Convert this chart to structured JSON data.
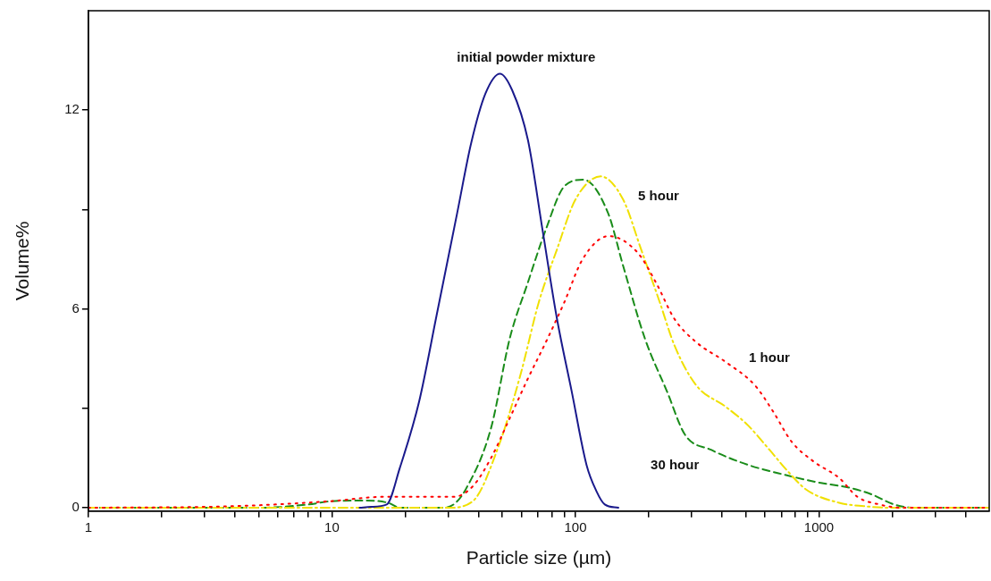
{
  "chart_data": {
    "type": "line",
    "xlabel": "Particle size (µm)",
    "ylabel": "Volume%",
    "log": "x",
    "xlim": [
      1,
      5000
    ],
    "ylim": [
      -0.1,
      15
    ],
    "xticks": [
      1,
      {
        "value": 2,
        "label": null
      },
      {
        "value": 3,
        "label": null
      },
      {
        "value": 4,
        "label": null
      },
      {
        "value": 5,
        "label": null
      },
      {
        "value": 6,
        "label": null
      },
      {
        "value": 7,
        "label": null
      },
      {
        "value": 8,
        "label": null
      },
      {
        "value": 9,
        "label": null
      },
      10,
      {
        "value": 20,
        "label": null
      },
      {
        "value": 30,
        "label": null
      },
      {
        "value": 40,
        "label": null
      },
      {
        "value": 50,
        "label": null
      },
      {
        "value": 60,
        "label": null
      },
      {
        "value": 70,
        "label": null
      },
      {
        "value": 80,
        "label": null
      },
      {
        "value": 90,
        "label": null
      },
      100,
      {
        "value": 200,
        "label": null
      },
      {
        "value": 300,
        "label": null
      },
      {
        "value": 400,
        "label": null
      },
      {
        "value": 500,
        "label": null
      },
      {
        "value": 600,
        "label": null
      },
      {
        "value": 700,
        "label": null
      },
      {
        "value": 800,
        "label": null
      },
      {
        "value": 900,
        "label": null
      },
      1000,
      {
        "value": 2000,
        "label": null
      },
      {
        "value": 3000,
        "label": null
      },
      {
        "value": 4000,
        "label": null
      }
    ],
    "yticks": [
      0,
      {
        "value": 3,
        "label": null
      },
      6,
      {
        "value": 9,
        "label": null
      },
      12
    ],
    "grid": false,
    "legend": false,
    "marker": "none",
    "series": [
      {
        "color": "#1a1a8c",
        "line_style": "solid",
        "x": [
          13,
          14.5,
          16.8,
          19,
          22.8,
          26.9,
          32.7,
          37.3,
          42.7,
          49,
          55,
          63.8,
          73.2,
          84,
          96.6,
          111,
          122,
          132,
          150
        ],
        "values": [
          0,
          0.03,
          0.1,
          1.2,
          3.2,
          5.8,
          8.9,
          11.0,
          12.5,
          13.1,
          12.6,
          11.1,
          8.4,
          5.7,
          3.5,
          1.3,
          0.5,
          0.1,
          0
        ]
      },
      {
        "color": "#ff0000",
        "line_style": "dotted",
        "x": [
          1,
          4,
          9.9,
          16.2,
          31.6,
          37.9,
          45,
          53.7,
          63.8,
          75.6,
          90,
          107,
          137,
          180,
          214,
          255,
          313,
          414,
          545,
          649,
          771,
          949,
          1210,
          1439,
          1770,
          2200,
          5000
        ],
        "values": [
          0,
          0.05,
          0.2,
          0.33,
          0.33,
          0.65,
          1.5,
          2.7,
          3.9,
          5.0,
          6.2,
          7.5,
          8.2,
          7.7,
          6.8,
          5.7,
          5.0,
          4.4,
          3.7,
          2.9,
          2.0,
          1.4,
          0.9,
          0.33,
          0.1,
          0,
          0
        ]
      },
      {
        "color": "#f0e000",
        "line_style": "dashdot",
        "x": [
          1,
          30,
          37.9,
          48.3,
          59.4,
          70.7,
          84,
          100,
          127,
          157,
          186,
          222,
          255,
          313,
          414,
          509,
          626,
          745,
          886,
          1210,
          1530,
          2000,
          5000
        ],
        "values": [
          0,
          0,
          0.2,
          1.85,
          4.0,
          6.2,
          7.8,
          9.3,
          10.0,
          9.3,
          7.8,
          6.2,
          4.9,
          3.7,
          3.05,
          2.5,
          1.75,
          1.1,
          0.55,
          0.15,
          0.05,
          0,
          0
        ]
      },
      {
        "color": "#1a8c1a",
        "line_style": "dashed",
        "x": [
          1,
          5,
          8,
          10,
          13.8,
          17,
          19.1,
          28,
          31.6,
          35.4,
          45,
          53.7,
          63.8,
          75.6,
          90,
          108,
          136,
          157,
          193,
          238,
          282,
          360,
          509,
          719,
          1018,
          1343,
          1652,
          2033,
          2500,
          5000
        ],
        "values": [
          0,
          0,
          0.1,
          0.2,
          0.22,
          0.15,
          0,
          0,
          0.1,
          0.55,
          2.4,
          5.1,
          6.8,
          8.4,
          9.7,
          9.9,
          8.9,
          7.3,
          5.1,
          3.5,
          2.2,
          1.75,
          1.3,
          1.0,
          0.75,
          0.6,
          0.4,
          0.1,
          0,
          0
        ]
      }
    ],
    "annotations": [
      "initial powder mixture",
      "5 hour",
      "1 hour",
      "30 hour"
    ]
  }
}
